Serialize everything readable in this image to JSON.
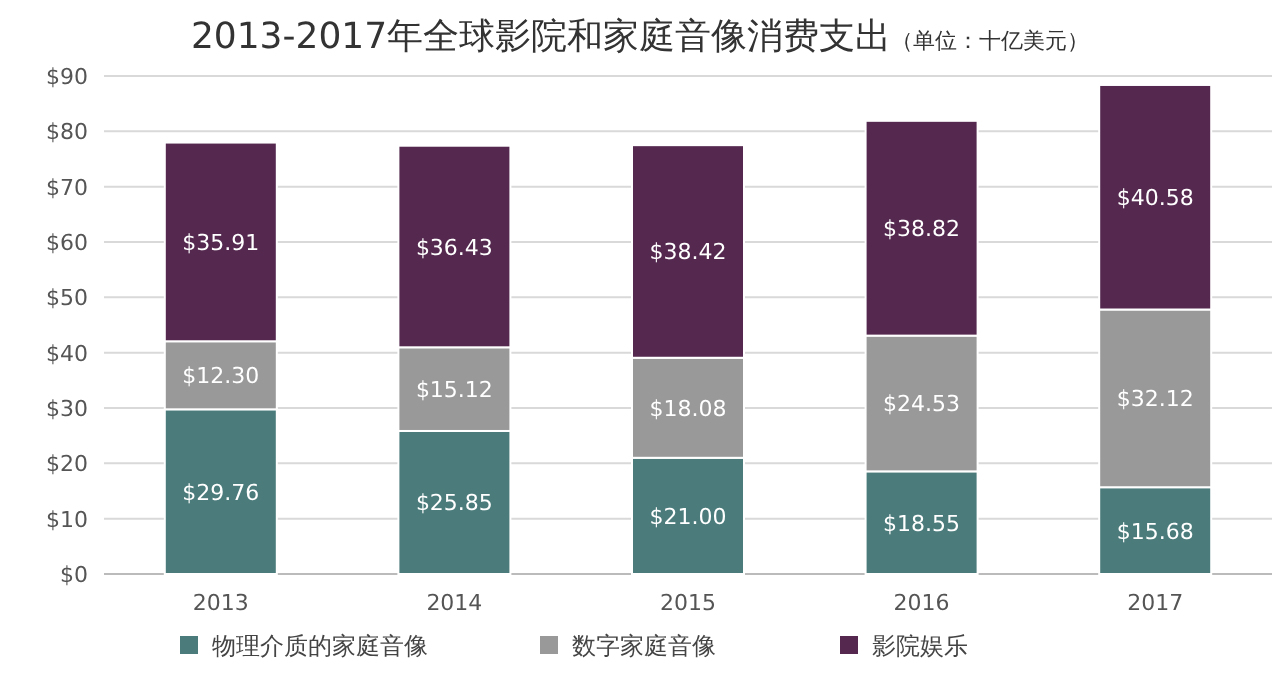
{
  "chart_data": {
    "type": "bar",
    "stacked": true,
    "title": "2013-2017年全球影院和家庭音像消费支出",
    "subtitle": "（单位：十亿美元）",
    "categories": [
      "2013",
      "2014",
      "2015",
      "2016",
      "2017"
    ],
    "series": [
      {
        "name": "物理介质的家庭音像",
        "color": "#4b7b7b",
        "values": [
          29.76,
          25.85,
          21.0,
          18.55,
          15.68
        ],
        "value_labels": [
          "$29.76",
          "$25.85",
          "$21.00",
          "$18.55",
          "$15.68"
        ]
      },
      {
        "name": "数字家庭音像",
        "color": "#999999",
        "values": [
          12.3,
          15.12,
          18.08,
          24.53,
          32.12
        ],
        "value_labels": [
          "$12.30",
          "$15.12",
          "$18.08",
          "$24.53",
          "$32.12"
        ]
      },
      {
        "name": "影院娱乐",
        "color": "#54284f",
        "values": [
          35.91,
          36.43,
          38.42,
          38.82,
          40.58
        ],
        "value_labels": [
          "$35.91",
          "$36.43",
          "$38.42",
          "$38.82",
          "$40.58"
        ]
      }
    ],
    "ylim": [
      0,
      90
    ],
    "yticks": [
      {
        "value": 0,
        "label": "$0"
      },
      {
        "value": 10,
        "label": "$10"
      },
      {
        "value": 20,
        "label": "$20"
      },
      {
        "value": 30,
        "label": "$30"
      },
      {
        "value": 40,
        "label": "$40"
      },
      {
        "value": 50,
        "label": "$50"
      },
      {
        "value": 60,
        "label": "$60"
      },
      {
        "value": 70,
        "label": "$70"
      },
      {
        "value": 80,
        "label": "$80"
      },
      {
        "value": 90,
        "label": "$90"
      }
    ],
    "grid": "y",
    "legend": "bottom"
  }
}
